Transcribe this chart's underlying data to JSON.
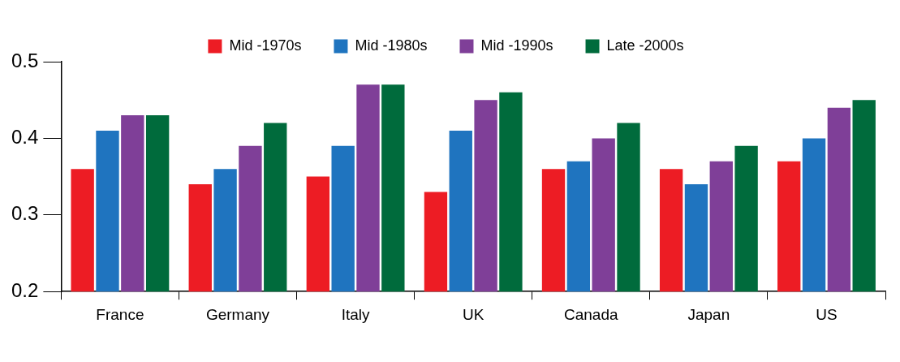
{
  "chart_data": {
    "type": "bar",
    "categories": [
      "France",
      "Germany",
      "Italy",
      "UK",
      "Canada",
      "Japan",
      "US"
    ],
    "series": [
      {
        "name": "Mid -1970s",
        "color": "#ed1c24",
        "values": [
          0.36,
          0.34,
          0.35,
          0.33,
          0.36,
          0.36,
          0.37
        ]
      },
      {
        "name": "Mid -1980s",
        "color": "#1f74bf",
        "values": [
          0.41,
          0.36,
          0.39,
          0.41,
          0.37,
          0.34,
          0.4
        ]
      },
      {
        "name": "Mid -1990s",
        "color": "#7f3f98",
        "values": [
          0.43,
          0.39,
          0.47,
          0.45,
          0.4,
          0.37,
          0.44
        ]
      },
      {
        "name": "Late -2000s",
        "color": "#006b3c",
        "values": [
          0.43,
          0.42,
          0.47,
          0.46,
          0.42,
          0.39,
          0.45
        ]
      }
    ],
    "ylim": [
      0.2,
      0.5
    ],
    "yticks": [
      0.2,
      0.3,
      0.4,
      0.5
    ],
    "grid": false,
    "legend": "top"
  }
}
